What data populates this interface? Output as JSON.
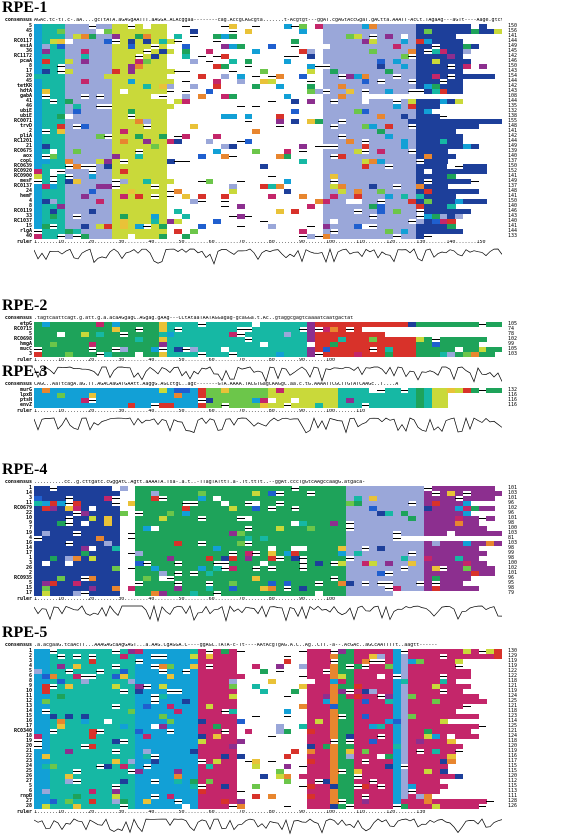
{
  "panels": [
    {
      "id": "rpe1",
      "title": "RPE-1",
      "top": 0,
      "consensus_label": "consensus",
      "consensus": "AGAc.tc-tT.c-.aA....gcTtATA.aGAGgAATTT.aAGGA.ACAcggaa--------cag.AccgCAGcgta.......t-Acgtgt---ggAT.cgAGtAccGgaT.gACtta.AAATT-AcCt.TAgaAg---aGTt----Aage.gtct",
      "ruler_label": "ruler",
      "ruler_text": "1.......10........20........30........40........50........60........70........80........90.......100.......110.......120.......130.......140.......150",
      "rows": [
        {
          "name": "5",
          "num": "150"
        },
        {
          "name": "45",
          "num": "156"
        },
        {
          "name": "0",
          "num": "141"
        },
        {
          "name": "RC0117",
          "num": "144"
        },
        {
          "name": "esiA",
          "num": "149"
        },
        {
          "name": "36",
          "num": "145"
        },
        {
          "name": "RC1172",
          "num": "142"
        },
        {
          "name": "pcaA",
          "num": "146"
        },
        {
          "name": "8",
          "num": "150"
        },
        {
          "name": "17",
          "num": "143"
        },
        {
          "name": "20",
          "num": "154"
        },
        {
          "name": "45",
          "num": "144"
        },
        {
          "name": "tetKR",
          "num": "142"
        },
        {
          "name": "hdtA",
          "num": "143"
        },
        {
          "name": "gabA",
          "num": "108"
        },
        {
          "name": "41",
          "num": "144"
        },
        {
          "name": "46",
          "num": "135"
        },
        {
          "name": "ubiE",
          "num": "132"
        },
        {
          "name": "ubiE",
          "num": "138"
        },
        {
          "name": "RC0071",
          "num": "155"
        },
        {
          "name": "trvD",
          "num": "148"
        },
        {
          "name": "2",
          "num": "141"
        },
        {
          "name": "pliA",
          "num": "142"
        },
        {
          "name": "RC1201",
          "num": "144"
        },
        {
          "name": "21",
          "num": "149"
        },
        {
          "name": "RC0675",
          "num": "139"
        },
        {
          "name": "aox",
          "num": "140"
        },
        {
          "name": "copL",
          "num": "137"
        },
        {
          "name": "RC0639",
          "num": "150"
        },
        {
          "name": "RC0920",
          "num": "152"
        },
        {
          "name": "RC0900",
          "num": "141"
        },
        {
          "name": "mesF",
          "num": "149"
        },
        {
          "name": "RC0137",
          "num": "137"
        },
        {
          "name": "24",
          "num": "148"
        },
        {
          "name": "hemF",
          "num": "141"
        },
        {
          "name": "4",
          "num": "150"
        },
        {
          "name": "8",
          "num": "140"
        },
        {
          "name": "RC0119",
          "num": "146"
        },
        {
          "name": "33",
          "num": "143"
        },
        {
          "name": "RC1037",
          "num": "140"
        },
        {
          "name": "15",
          "num": "141"
        },
        {
          "name": "rlgA",
          "num": "144"
        },
        {
          "name": "40",
          "num": "133"
        }
      ]
    },
    {
      "id": "rpe2",
      "title": "RPE-2",
      "top": 298,
      "consensus_label": "consensus",
      "consensus": ".tagtcaattcagt.g.att.g.a.acaAGgagC.AGgag.gAAg---CCtAtaaTAATAGGagag-gcaGGa.t.Ac..gtaggcgagtcaaaatcaatgactat",
      "ruler_label": "ruler",
      "ruler_text": "1.......10........20........30........40........50........60........70........80........90.......100",
      "rows": [
        {
          "name": "etpG",
          "num": "105"
        },
        {
          "name": "RC0715",
          "num": "74"
        },
        {
          "name": "5",
          "num": "78"
        },
        {
          "name": "RC0698",
          "num": "102"
        },
        {
          "name": "hmgA",
          "num": "99"
        },
        {
          "name": "mucC",
          "num": "105"
        },
        {
          "name": "3",
          "num": "103"
        }
      ]
    },
    {
      "id": "rpe3",
      "title": "RPE-3",
      "top": 364,
      "consensus_label": "consensus",
      "consensus": "CAGC..AaTtcagA.aG.TT.AGACAaGATGAAtt.AaggG.AGCctgC..agc-------GTA.AAAA.TACGTGagCAAGgC.aa.c.tG.AAAATTCGCTTGTATCAAGc..T....A",
      "ruler_label": "ruler",
      "ruler_text": "1.......10........20........30........40........50........60........70........80........90.......100.......110",
      "rows": [
        {
          "name": "murG",
          "num": "132"
        },
        {
          "name": "lpxB",
          "num": "116"
        },
        {
          "name": "ptsN",
          "num": "116"
        },
        {
          "name": "envZ",
          "num": "116"
        }
      ]
    },
    {
      "id": "rpe4",
      "title": "RPE-4",
      "top": 462,
      "consensus_label": "consensus",
      "consensus": "..........cc..g.cttgatc.cGggAtC.Agtt.aAAATA.Tsa-.a.t..-TTagTATttT.a-.Tt.ttTt..--ggAt.cccTgGtcAAgccaagG.atgaca-",
      "ruler_label": "ruler",
      "ruler_text": "1.......10........20........30........40........50........60........70........80........90.......100",
      "rows": [
        {
          "name": "1",
          "num": "101"
        },
        {
          "name": "14",
          "num": "103"
        },
        {
          "name": "3",
          "num": "101"
        },
        {
          "name": "11",
          "num": "96"
        },
        {
          "name": "RC0679",
          "num": "102"
        },
        {
          "name": "22",
          "num": "96"
        },
        {
          "name": "10",
          "num": "101"
        },
        {
          "name": "9",
          "num": "98"
        },
        {
          "name": "7",
          "num": "100"
        },
        {
          "name": "19",
          "num": "103"
        },
        {
          "name": "4",
          "num": "81"
        },
        {
          "name": "16",
          "num": "103"
        },
        {
          "name": "14",
          "num": "98"
        },
        {
          "name": "17",
          "num": "99"
        },
        {
          "name": "1",
          "num": "98"
        },
        {
          "name": "3",
          "num": "100"
        },
        {
          "name": "26",
          "num": "102"
        },
        {
          "name": "2",
          "num": "101"
        },
        {
          "name": "RC0935",
          "num": "96"
        },
        {
          "name": "5",
          "num": "95"
        },
        {
          "name": "15",
          "num": "98"
        },
        {
          "name": "17",
          "num": "79"
        }
      ]
    },
    {
      "id": "rpe5",
      "title": "RPE-5",
      "top": 625,
      "consensus_label": "consensus",
      "consensus": ".a.acgaaG.tcaAcTT...AAAGAGcaAgGAGT...a.AAG.CgAGGA.C----ggAGC.TATA-c-Tt----AAtAcgTgAG.A.C..Ag..CTT.-a--.AcGAc..aGCcAATTTTt..aagtt------",
      "ruler_label": "ruler",
      "ruler_text": "1.......10........20........30........40........50........60........70........80........90.......100.......110.......120.......130",
      "rows": [
        {
          "name": "1",
          "num": "130"
        },
        {
          "name": "2",
          "num": "129"
        },
        {
          "name": "3",
          "num": "119"
        },
        {
          "name": "4",
          "num": "119"
        },
        {
          "name": "5",
          "num": "122"
        },
        {
          "name": "6",
          "num": "122"
        },
        {
          "name": "8",
          "num": "118"
        },
        {
          "name": "9",
          "num": "121"
        },
        {
          "name": "10",
          "num": "119"
        },
        {
          "name": "11",
          "num": "124"
        },
        {
          "name": "12",
          "num": "125"
        },
        {
          "name": "13",
          "num": "121"
        },
        {
          "name": "14",
          "num": "118"
        },
        {
          "name": "15",
          "num": "123"
        },
        {
          "name": "16",
          "num": "114"
        },
        {
          "name": "17",
          "num": "125"
        },
        {
          "name": "RC0340",
          "num": "121"
        },
        {
          "name": "18",
          "num": "124"
        },
        {
          "name": "19",
          "num": "118"
        },
        {
          "name": "20",
          "num": "120"
        },
        {
          "name": "21",
          "num": "119"
        },
        {
          "name": "22",
          "num": "116"
        },
        {
          "name": "23",
          "num": "117"
        },
        {
          "name": "24",
          "num": "115"
        },
        {
          "name": "25",
          "num": "115"
        },
        {
          "name": "26",
          "num": "120"
        },
        {
          "name": "27",
          "num": "112"
        },
        {
          "name": "5",
          "num": "115"
        },
        {
          "name": "6",
          "num": "113"
        },
        {
          "name": "rnpB",
          "num": "111"
        },
        {
          "name": "27",
          "num": "128"
        },
        {
          "name": "28",
          "num": "126"
        }
      ]
    }
  ]
}
